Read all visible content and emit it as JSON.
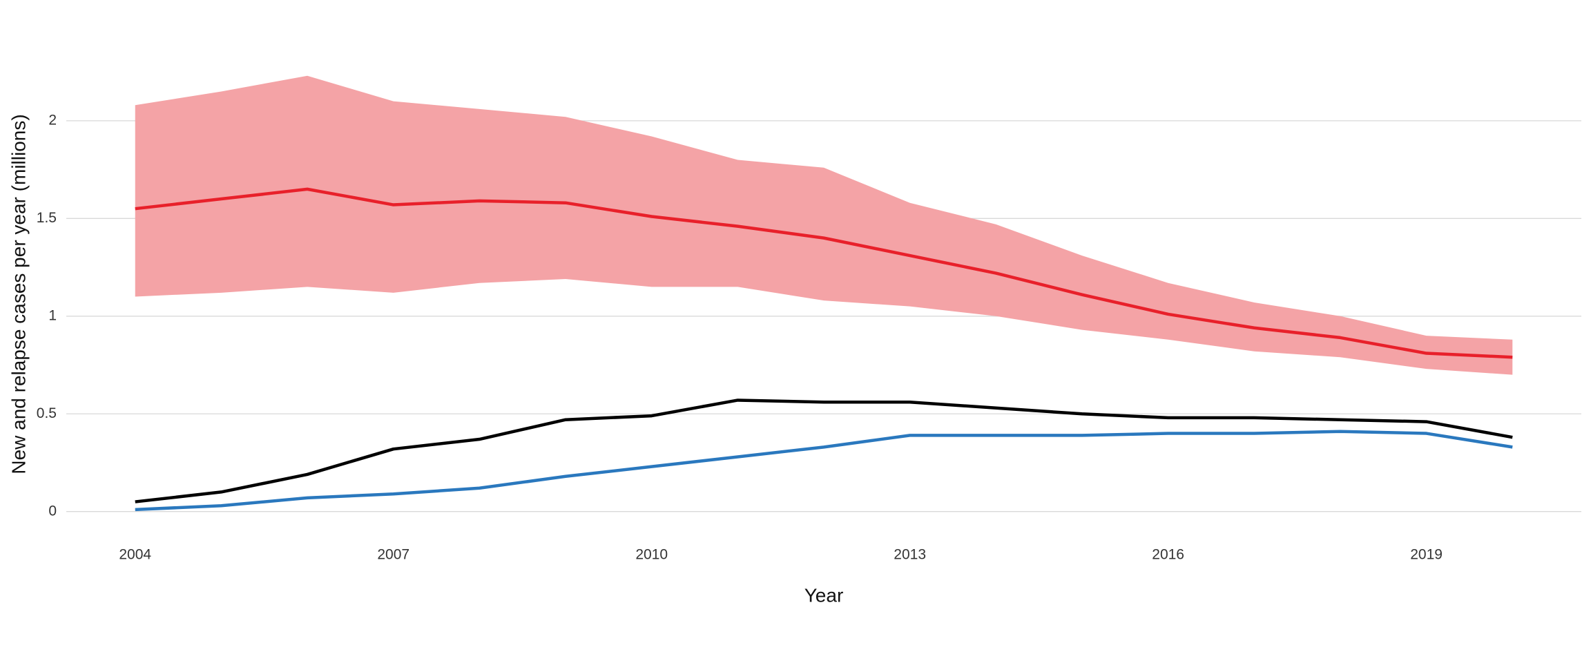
{
  "chart_data": {
    "type": "line",
    "x_label": "Year",
    "y_label": "New and relapse cases per year (millions)",
    "x": [
      2004,
      2005,
      2006,
      2007,
      2008,
      2009,
      2010,
      2011,
      2012,
      2013,
      2014,
      2015,
      2016,
      2017,
      2018,
      2019,
      2020
    ],
    "band": {
      "color": "#f4a3a6",
      "upper": [
        2.08,
        2.15,
        2.23,
        2.1,
        2.06,
        2.02,
        1.92,
        1.8,
        1.76,
        1.58,
        1.47,
        1.31,
        1.17,
        1.07,
        1.0,
        0.9,
        0.88
      ],
      "lower": [
        1.1,
        1.12,
        1.15,
        1.12,
        1.17,
        1.19,
        1.15,
        1.15,
        1.08,
        1.05,
        1.0,
        0.93,
        0.88,
        0.82,
        0.79,
        0.73,
        0.7
      ]
    },
    "series": [
      {
        "color": "#e8202a",
        "values": [
          1.55,
          1.6,
          1.65,
          1.57,
          1.59,
          1.58,
          1.51,
          1.46,
          1.4,
          1.31,
          1.22,
          1.11,
          1.01,
          0.94,
          0.89,
          0.81,
          0.79
        ]
      },
      {
        "color": "#000000",
        "values": [
          0.05,
          0.1,
          0.19,
          0.32,
          0.37,
          0.47,
          0.49,
          0.57,
          0.56,
          0.56,
          0.53,
          0.5,
          0.48,
          0.48,
          0.47,
          0.46,
          0.38
        ]
      },
      {
        "color": "#2a78be",
        "values": [
          0.01,
          0.03,
          0.07,
          0.09,
          0.12,
          0.18,
          0.23,
          0.28,
          0.33,
          0.39,
          0.39,
          0.39,
          0.4,
          0.4,
          0.41,
          0.4,
          0.33
        ]
      }
    ],
    "xlim": [
      2003.2,
      2020.8
    ],
    "xticks": [
      2004,
      2007,
      2010,
      2013,
      2016,
      2019
    ],
    "ylim": [
      -0.1,
      2.3
    ],
    "yticks": [
      0,
      0.5,
      1,
      1.5,
      2
    ],
    "grid": true
  }
}
